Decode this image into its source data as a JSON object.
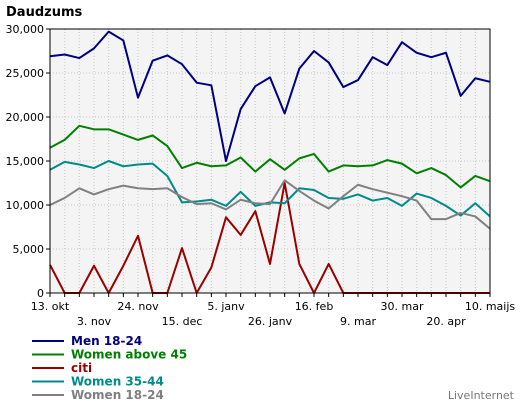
{
  "chart_data": {
    "type": "line",
    "title": "Daudzums",
    "xlabel": "",
    "ylabel": "",
    "ylim": [
      0,
      30000
    ],
    "yticks": [
      0,
      5000,
      10000,
      15000,
      20000,
      25000,
      30000
    ],
    "ytick_labels": [
      "0",
      "5,000",
      "10,000",
      "15,000",
      "20,000",
      "25,000",
      "30,000"
    ],
    "grid": true,
    "legend_position": "bottom-left",
    "x_tick_labels_row1": [
      {
        "index": 0,
        "label": "13. okt"
      },
      {
        "index": 6,
        "label": "24. nov"
      },
      {
        "index": 12,
        "label": "5. janv"
      },
      {
        "index": 18,
        "label": "16. feb"
      },
      {
        "index": 24,
        "label": "30. mar"
      },
      {
        "index": 30,
        "label": "10. maijs"
      }
    ],
    "x_tick_labels_row2": [
      {
        "index": 3,
        "label": "3. nov"
      },
      {
        "index": 9,
        "label": "15. dec"
      },
      {
        "index": 15,
        "label": "26. janv"
      },
      {
        "index": 21,
        "label": "9. mar"
      },
      {
        "index": 27,
        "label": "20. apr"
      }
    ],
    "series": [
      {
        "name": "Men 18-24",
        "color": "#000080",
        "values": [
          26900,
          27100,
          26700,
          27800,
          29700,
          28700,
          22200,
          26400,
          27000,
          26000,
          23900,
          23600,
          15000,
          20900,
          23500,
          24500,
          20400,
          25500,
          27500,
          26200,
          23400,
          24200,
          26800,
          25900,
          28500,
          27300,
          26800,
          27300,
          22400,
          24400,
          24000
        ]
      },
      {
        "name": "Women above 45",
        "color": "#008000",
        "values": [
          16500,
          17400,
          19000,
          18600,
          18600,
          18000,
          17400,
          17900,
          16700,
          14200,
          14800,
          14400,
          14500,
          15400,
          13800,
          15200,
          14000,
          15300,
          15800,
          13800,
          14500,
          14400,
          14500,
          15100,
          14700,
          13600,
          14200,
          13400,
          12000,
          13300,
          12700
        ]
      },
      {
        "name": "citi",
        "color": "#990000",
        "values": [
          3200,
          0,
          0,
          3100,
          0,
          3100,
          6500,
          0,
          0,
          5100,
          0,
          2900,
          8600,
          6600,
          9300,
          3300,
          12500,
          3300,
          0,
          3300,
          0,
          0,
          0,
          0,
          0,
          0,
          0,
          0,
          0,
          0,
          0
        ]
      },
      {
        "name": "Women 35-44",
        "color": "#008b8b",
        "values": [
          14000,
          14900,
          14600,
          14200,
          15000,
          14400,
          14600,
          14700,
          13300,
          10300,
          10400,
          10600,
          9900,
          11500,
          9900,
          10300,
          10200,
          11900,
          11700,
          10800,
          10700,
          11200,
          10500,
          10800,
          9900,
          11300,
          10800,
          9900,
          8800,
          10200,
          8700
        ]
      },
      {
        "name": "Women 18-24",
        "color": "#808080",
        "values": [
          10000,
          10800,
          11900,
          11200,
          11800,
          12200,
          11900,
          11800,
          11900,
          10900,
          10100,
          10200,
          9500,
          10600,
          10200,
          10100,
          12800,
          11600,
          10500,
          9600,
          11000,
          12300,
          11800,
          11400,
          11000,
          10500,
          8400,
          8400,
          9100,
          8700,
          7300
        ]
      }
    ]
  },
  "watermark": "LiveInternet"
}
